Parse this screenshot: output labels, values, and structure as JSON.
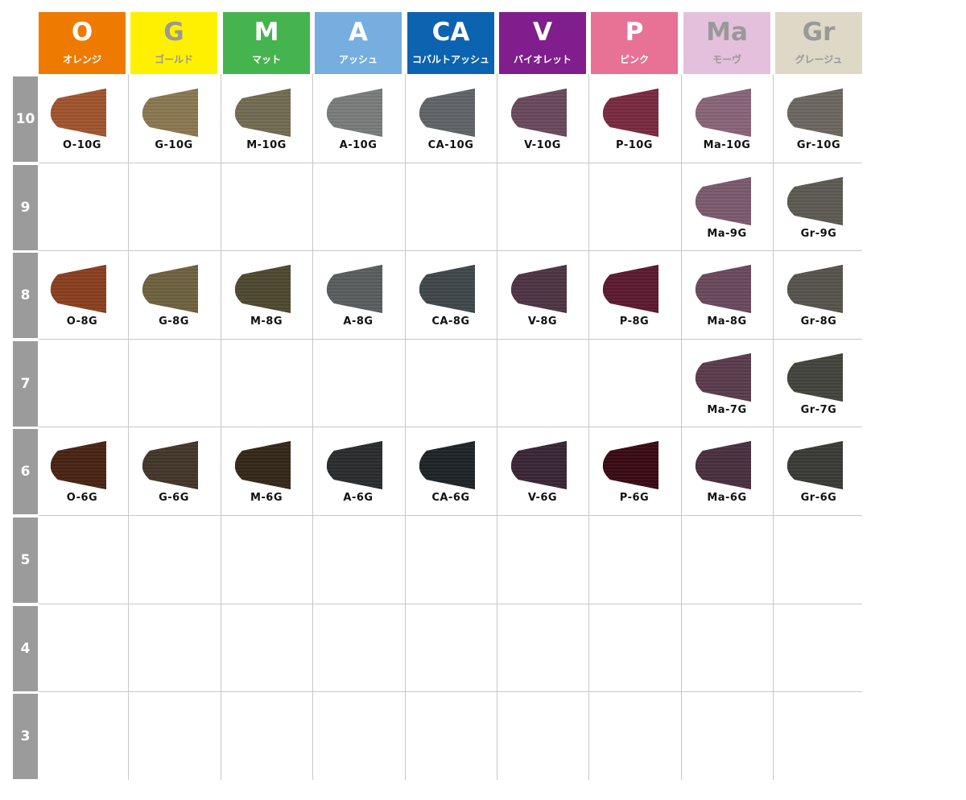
{
  "columns": [
    {
      "code": "O",
      "name": "オレンジ",
      "bg": "#ef7a00",
      "fg": "#ffffff"
    },
    {
      "code": "G",
      "name": "ゴールド",
      "bg": "#fff000",
      "fg": "#999999"
    },
    {
      "code": "M",
      "name": "マット",
      "bg": "#46b44e",
      "fg": "#ffffff"
    },
    {
      "code": "A",
      "name": "アッシュ",
      "bg": "#75aedf",
      "fg": "#ffffff"
    },
    {
      "code": "CA",
      "name": "コバルトアッシュ",
      "bg": "#0c63b0",
      "fg": "#ffffff"
    },
    {
      "code": "V",
      "name": "バイオレット",
      "bg": "#7f1e8c",
      "fg": "#ffffff"
    },
    {
      "code": "P",
      "name": "ピンク",
      "bg": "#e87196",
      "fg": "#ffffff"
    },
    {
      "code": "Ma",
      "name": "モーヴ",
      "bg": "#e4c0dc",
      "fg": "#999999"
    },
    {
      "code": "Gr",
      "name": "グレージュ",
      "bg": "#ddd9c6",
      "fg": "#999999"
    }
  ],
  "rows": [
    {
      "level": "10",
      "cells": [
        {
          "label": "O-10G",
          "color": "#a0552e"
        },
        {
          "label": "G-10G",
          "color": "#8a7850"
        },
        {
          "label": "M-10G",
          "color": "#736c52"
        },
        {
          "label": "A-10G",
          "color": "#7a7c7c"
        },
        {
          "label": "CA-10G",
          "color": "#606468"
        },
        {
          "label": "V-10G",
          "color": "#6a4a5c"
        },
        {
          "label": "P-10G",
          "color": "#7a2a40"
        },
        {
          "label": "Ma-10G",
          "color": "#8a6478"
        },
        {
          "label": "Gr-10G",
          "color": "#6c6860"
        }
      ]
    },
    {
      "level": "9",
      "cells": [
        null,
        null,
        null,
        null,
        null,
        null,
        null,
        {
          "label": "Ma-9G",
          "color": "#7a5a6e"
        },
        {
          "label": "Gr-9G",
          "color": "#5c5a52"
        }
      ]
    },
    {
      "level": "8",
      "cells": [
        {
          "label": "O-8G",
          "color": "#8a4020"
        },
        {
          "label": "G-8G",
          "color": "#6e6240"
        },
        {
          "label": "M-8G",
          "color": "#4e4a30"
        },
        {
          "label": "A-8G",
          "color": "#5a5e5e"
        },
        {
          "label": "CA-8G",
          "color": "#40484c"
        },
        {
          "label": "V-8G",
          "color": "#4e3444"
        },
        {
          "label": "P-8G",
          "color": "#5c1a30"
        },
        {
          "label": "Ma-8G",
          "color": "#6a4a5c"
        },
        {
          "label": "Gr-8G",
          "color": "#56544c"
        }
      ]
    },
    {
      "level": "7",
      "cells": [
        null,
        null,
        null,
        null,
        null,
        null,
        null,
        {
          "label": "Ma-7G",
          "color": "#5a3c4c"
        },
        {
          "label": "Gr-7G",
          "color": "#44443e"
        }
      ]
    },
    {
      "level": "6",
      "cells": [
        {
          "label": "O-6G",
          "color": "#4a2414"
        },
        {
          "label": "G-6G",
          "color": "#43362a"
        },
        {
          "label": "M-6G",
          "color": "#34281a"
        },
        {
          "label": "A-6G",
          "color": "#2a2c2e"
        },
        {
          "label": "CA-6G",
          "color": "#1e2428"
        },
        {
          "label": "V-6G",
          "color": "#3a2634"
        },
        {
          "label": "P-6G",
          "color": "#3a0a14"
        },
        {
          "label": "Ma-6G",
          "color": "#4a3040"
        },
        {
          "label": "Gr-6G",
          "color": "#3a3a36"
        }
      ]
    },
    {
      "level": "5",
      "cells": [
        null,
        null,
        null,
        null,
        null,
        null,
        null,
        null,
        null
      ]
    },
    {
      "level": "4",
      "cells": [
        null,
        null,
        null,
        null,
        null,
        null,
        null,
        null,
        null
      ]
    },
    {
      "level": "3",
      "cells": [
        null,
        null,
        null,
        null,
        null,
        null,
        null,
        null,
        null
      ]
    }
  ]
}
